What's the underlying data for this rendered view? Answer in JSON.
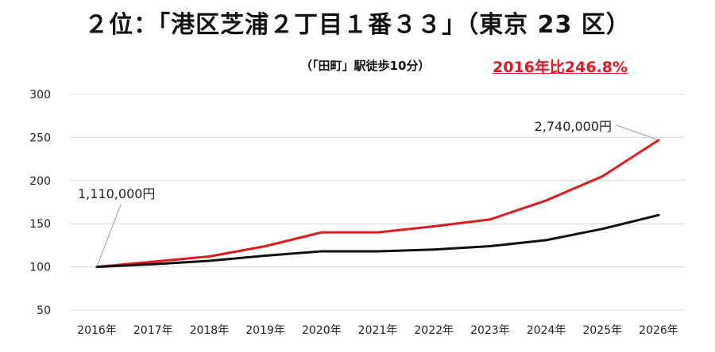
{
  "header": {
    "title": "２位：「港区芝浦２丁目１番３３」（東京 23 区）",
    "subtitle": "（「田町」駅徒歩10分）",
    "highlight": "2016年比246.8%"
  },
  "colors": {
    "red": "#e0191e",
    "black": "#111111",
    "grid": "#d9d9d9"
  },
  "chart_data": {
    "type": "line",
    "categories": [
      "2016年",
      "2017年",
      "2018年",
      "2019年",
      "2020年",
      "2021年",
      "2022年",
      "2023年",
      "2024年",
      "2025年",
      "2026年"
    ],
    "series": [
      {
        "color": "#e0191e",
        "values": [
          100,
          106,
          112,
          124,
          140,
          140,
          147,
          155,
          177,
          205,
          247
        ]
      },
      {
        "color": "#111111",
        "values": [
          100,
          103,
          107,
          113,
          118,
          118,
          120,
          124,
          131,
          144,
          160
        ]
      }
    ],
    "ylim": [
      50,
      300
    ],
    "yticks": [
      50,
      100,
      150,
      200,
      250,
      300
    ],
    "grid": true,
    "annotations": [
      {
        "text": "1,110,000円",
        "category_index": 0,
        "series_index": 0
      },
      {
        "text": "2,740,000円",
        "category_index": 10,
        "series_index": 0
      }
    ]
  }
}
